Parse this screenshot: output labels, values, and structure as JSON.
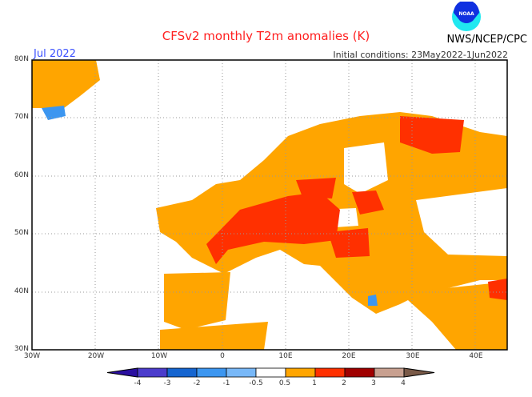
{
  "header": {
    "title": "CFSv2 monthly T2m anomalies (K)",
    "org": "NWS/NCEP/CPC",
    "logo_text": "NOAA",
    "month": "Jul 2022",
    "initial_conditions": "Initial conditions: 23May2022-1Jun2022"
  },
  "axes": {
    "lat_labels": [
      "80N",
      "70N",
      "60N",
      "50N",
      "40N",
      "30N"
    ],
    "lon_labels": [
      "30W",
      "20W",
      "10W",
      "0",
      "10E",
      "20E",
      "30E",
      "40E"
    ]
  },
  "colorbar": {
    "labels": [
      "-4",
      "-3",
      "-2",
      "-1",
      "-0.5",
      "0.5",
      "1",
      "2",
      "3",
      "4"
    ],
    "colors": [
      "#2a0fa0",
      "#4b3ccc",
      "#1565d0",
      "#3c96f0",
      "#78b8f8",
      "#ffffff",
      "#ffa500",
      "#ff3000",
      "#a00000",
      "#c8a090",
      "#7a5a48"
    ]
  }
}
